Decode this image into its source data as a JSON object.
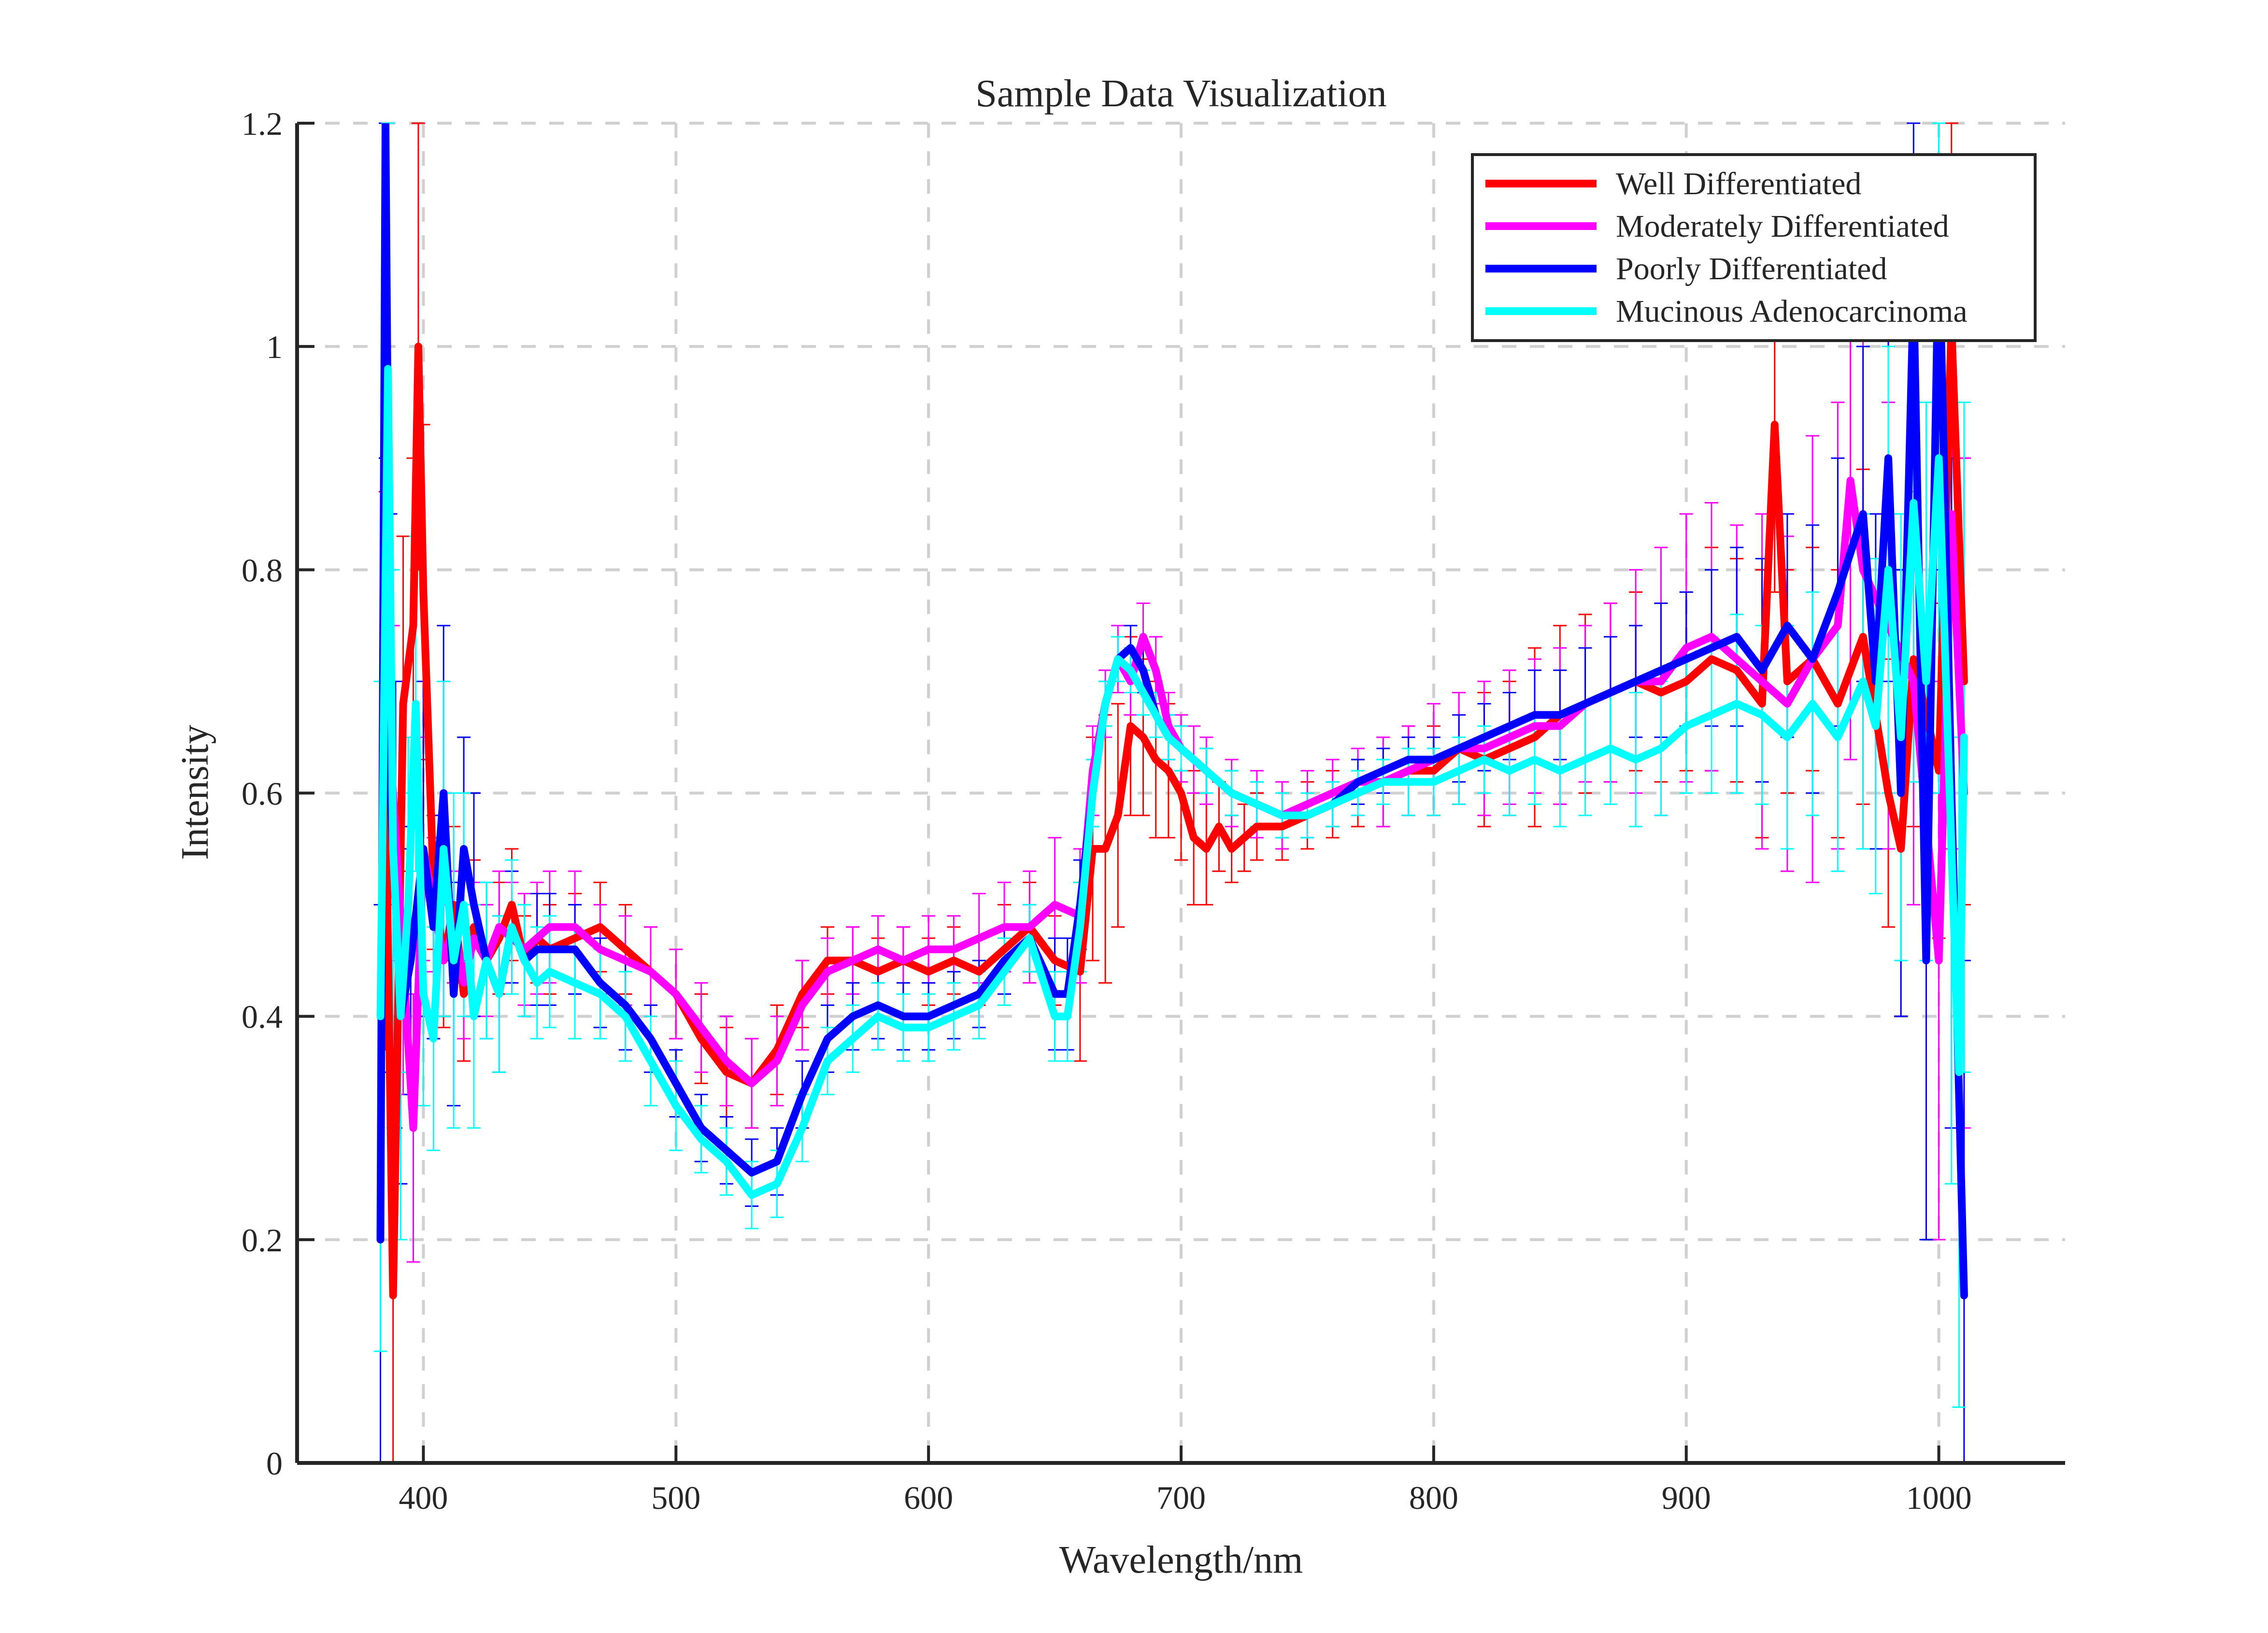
{
  "chart_data": {
    "type": "line",
    "title": "Sample Data Visualization",
    "xlabel": "Wavelength/nm",
    "ylabel": "Intensity",
    "xlim": [
      350,
      1050
    ],
    "ylim": [
      0,
      1.2
    ],
    "xticks": [
      400,
      500,
      600,
      700,
      800,
      900,
      1000
    ],
    "xtick_labels": [
      "400",
      "500",
      "600",
      "700",
      "800",
      "900",
      "1000"
    ],
    "yticks": [
      0,
      0.2,
      0.4,
      0.6,
      0.8,
      1.0,
      1.2
    ],
    "ytick_labels": [
      "0",
      "0.2",
      "0.4",
      "0.6",
      "0.8",
      "1",
      "1.2"
    ],
    "grid": true,
    "grid_style": "dashed",
    "legend_position": "top-right",
    "error_bars": true,
    "series": [
      {
        "name": "Well Differentiated",
        "color": "#ff0000",
        "x": [
          385,
          388,
          392,
          396,
          398,
          400,
          404,
          408,
          412,
          416,
          420,
          425,
          430,
          435,
          440,
          445,
          450,
          460,
          470,
          480,
          490,
          500,
          510,
          520,
          530,
          540,
          550,
          560,
          570,
          580,
          590,
          600,
          610,
          620,
          630,
          640,
          650,
          660,
          665,
          670,
          675,
          680,
          685,
          690,
          695,
          700,
          705,
          710,
          715,
          720,
          725,
          730,
          740,
          750,
          760,
          770,
          780,
          790,
          800,
          810,
          820,
          830,
          840,
          850,
          860,
          870,
          880,
          890,
          900,
          910,
          920,
          930,
          935,
          940,
          950,
          960,
          970,
          980,
          985,
          990,
          1000,
          1005,
          1010
        ],
        "y": [
          0.62,
          0.15,
          0.68,
          0.75,
          1.0,
          0.78,
          0.52,
          0.45,
          0.5,
          0.42,
          0.48,
          0.45,
          0.47,
          0.5,
          0.45,
          0.47,
          0.46,
          0.47,
          0.48,
          0.46,
          0.44,
          0.42,
          0.38,
          0.35,
          0.34,
          0.37,
          0.42,
          0.45,
          0.45,
          0.44,
          0.45,
          0.44,
          0.45,
          0.44,
          0.46,
          0.48,
          0.45,
          0.44,
          0.55,
          0.55,
          0.58,
          0.66,
          0.65,
          0.63,
          0.62,
          0.6,
          0.56,
          0.55,
          0.57,
          0.55,
          0.56,
          0.57,
          0.57,
          0.58,
          0.59,
          0.6,
          0.61,
          0.62,
          0.62,
          0.64,
          0.63,
          0.64,
          0.65,
          0.67,
          0.68,
          0.69,
          0.7,
          0.69,
          0.7,
          0.72,
          0.71,
          0.68,
          0.93,
          0.7,
          0.72,
          0.68,
          0.74,
          0.6,
          0.55,
          0.72,
          0.62,
          1.02,
          0.7
        ],
        "err": [
          0.25,
          0.25,
          0.15,
          0.15,
          0.2,
          0.15,
          0.06,
          0.06,
          0.07,
          0.06,
          0.06,
          0.05,
          0.05,
          0.05,
          0.04,
          0.04,
          0.04,
          0.04,
          0.04,
          0.04,
          0.04,
          0.04,
          0.04,
          0.04,
          0.04,
          0.04,
          0.03,
          0.03,
          0.03,
          0.03,
          0.03,
          0.03,
          0.03,
          0.03,
          0.04,
          0.04,
          0.04,
          0.08,
          0.1,
          0.12,
          0.1,
          0.08,
          0.07,
          0.07,
          0.06,
          0.06,
          0.06,
          0.05,
          0.04,
          0.03,
          0.03,
          0.03,
          0.03,
          0.03,
          0.03,
          0.03,
          0.04,
          0.04,
          0.04,
          0.05,
          0.06,
          0.06,
          0.08,
          0.08,
          0.08,
          0.08,
          0.08,
          0.08,
          0.08,
          0.1,
          0.1,
          0.12,
          0.15,
          0.1,
          0.1,
          0.12,
          0.15,
          0.12,
          0.15,
          0.15,
          0.15,
          0.2,
          0.2
        ]
      },
      {
        "name": "Moderately Differentiated",
        "color": "#ff00ff",
        "x": [
          385,
          388,
          392,
          396,
          400,
          404,
          408,
          412,
          416,
          420,
          425,
          430,
          435,
          440,
          445,
          450,
          460,
          470,
          480,
          490,
          500,
          510,
          520,
          530,
          540,
          550,
          560,
          570,
          580,
          590,
          600,
          610,
          620,
          630,
          640,
          650,
          660,
          665,
          670,
          675,
          680,
          685,
          690,
          695,
          700,
          705,
          710,
          720,
          730,
          740,
          750,
          760,
          770,
          780,
          790,
          800,
          810,
          820,
          830,
          840,
          850,
          860,
          870,
          880,
          890,
          900,
          910,
          920,
          930,
          940,
          950,
          960,
          965,
          970,
          980,
          990,
          1000,
          1005,
          1010
        ],
        "y": [
          0.7,
          0.6,
          0.45,
          0.3,
          0.55,
          0.5,
          0.45,
          0.48,
          0.43,
          0.47,
          0.45,
          0.48,
          0.47,
          0.46,
          0.47,
          0.48,
          0.48,
          0.46,
          0.45,
          0.44,
          0.42,
          0.39,
          0.36,
          0.34,
          0.36,
          0.41,
          0.44,
          0.45,
          0.46,
          0.45,
          0.46,
          0.46,
          0.47,
          0.48,
          0.48,
          0.5,
          0.49,
          0.62,
          0.68,
          0.72,
          0.7,
          0.74,
          0.71,
          0.66,
          0.64,
          0.63,
          0.62,
          0.6,
          0.59,
          0.58,
          0.59,
          0.6,
          0.61,
          0.61,
          0.62,
          0.63,
          0.64,
          0.64,
          0.65,
          0.66,
          0.66,
          0.68,
          0.69,
          0.7,
          0.7,
          0.73,
          0.74,
          0.72,
          0.7,
          0.68,
          0.72,
          0.75,
          0.88,
          0.8,
          0.75,
          0.7,
          0.45,
          0.85,
          0.6
        ],
        "err": [
          0.2,
          0.15,
          0.12,
          0.12,
          0.1,
          0.06,
          0.05,
          0.05,
          0.05,
          0.05,
          0.05,
          0.05,
          0.05,
          0.05,
          0.05,
          0.05,
          0.05,
          0.04,
          0.04,
          0.04,
          0.04,
          0.04,
          0.04,
          0.04,
          0.04,
          0.04,
          0.03,
          0.03,
          0.03,
          0.03,
          0.03,
          0.03,
          0.04,
          0.04,
          0.05,
          0.06,
          0.06,
          0.04,
          0.03,
          0.03,
          0.03,
          0.03,
          0.03,
          0.03,
          0.03,
          0.03,
          0.03,
          0.03,
          0.03,
          0.03,
          0.03,
          0.03,
          0.03,
          0.04,
          0.04,
          0.05,
          0.05,
          0.06,
          0.06,
          0.06,
          0.07,
          0.07,
          0.08,
          0.1,
          0.12,
          0.12,
          0.12,
          0.12,
          0.15,
          0.15,
          0.2,
          0.2,
          0.25,
          0.25,
          0.2,
          0.2,
          0.25,
          0.3,
          0.3
        ]
      },
      {
        "name": "Poorly Differentiated",
        "color": "#0000ff",
        "x": [
          383,
          385,
          387,
          389,
          391,
          395,
          400,
          404,
          408,
          412,
          416,
          420,
          425,
          430,
          435,
          440,
          445,
          450,
          460,
          470,
          480,
          490,
          500,
          510,
          520,
          530,
          540,
          550,
          560,
          570,
          580,
          590,
          600,
          610,
          620,
          630,
          640,
          650,
          655,
          660,
          665,
          670,
          675,
          680,
          685,
          690,
          695,
          700,
          710,
          720,
          730,
          740,
          750,
          760,
          770,
          780,
          790,
          800,
          810,
          820,
          830,
          840,
          850,
          860,
          870,
          880,
          890,
          900,
          910,
          920,
          930,
          940,
          950,
          960,
          970,
          975,
          980,
          985,
          990,
          995,
          1000,
          1005,
          1010
        ],
        "y": [
          0.2,
          1.2,
          0.6,
          0.5,
          0.4,
          0.45,
          0.55,
          0.48,
          0.6,
          0.42,
          0.55,
          0.5,
          0.45,
          0.42,
          0.48,
          0.45,
          0.46,
          0.46,
          0.46,
          0.43,
          0.41,
          0.38,
          0.34,
          0.3,
          0.28,
          0.26,
          0.27,
          0.33,
          0.38,
          0.4,
          0.41,
          0.4,
          0.4,
          0.41,
          0.42,
          0.45,
          0.47,
          0.42,
          0.42,
          0.5,
          0.6,
          0.68,
          0.72,
          0.73,
          0.71,
          0.67,
          0.65,
          0.64,
          0.62,
          0.6,
          0.59,
          0.58,
          0.58,
          0.59,
          0.61,
          0.62,
          0.63,
          0.63,
          0.64,
          0.65,
          0.66,
          0.67,
          0.67,
          0.68,
          0.69,
          0.7,
          0.71,
          0.72,
          0.73,
          0.74,
          0.71,
          0.75,
          0.72,
          0.78,
          0.85,
          0.7,
          0.9,
          0.6,
          1.05,
          0.45,
          1.1,
          0.6,
          0.15
        ],
        "err": [
          0.3,
          0.3,
          0.25,
          0.2,
          0.15,
          0.12,
          0.15,
          0.1,
          0.15,
          0.1,
          0.1,
          0.1,
          0.07,
          0.07,
          0.05,
          0.05,
          0.05,
          0.05,
          0.04,
          0.04,
          0.04,
          0.03,
          0.03,
          0.03,
          0.03,
          0.03,
          0.03,
          0.03,
          0.03,
          0.03,
          0.03,
          0.03,
          0.03,
          0.03,
          0.03,
          0.03,
          0.03,
          0.05,
          0.05,
          0.04,
          0.03,
          0.02,
          0.02,
          0.02,
          0.02,
          0.02,
          0.02,
          0.02,
          0.02,
          0.02,
          0.02,
          0.02,
          0.02,
          0.02,
          0.02,
          0.02,
          0.02,
          0.02,
          0.03,
          0.03,
          0.03,
          0.04,
          0.04,
          0.05,
          0.05,
          0.05,
          0.06,
          0.06,
          0.07,
          0.08,
          0.1,
          0.1,
          0.12,
          0.12,
          0.15,
          0.15,
          0.2,
          0.2,
          0.25,
          0.25,
          0.3,
          0.3,
          0.3
        ]
      },
      {
        "name": "Mucinous Adenocarcinoma",
        "color": "#00ffff",
        "x": [
          383,
          386,
          388,
          391,
          394,
          397,
          400,
          404,
          408,
          412,
          416,
          420,
          425,
          430,
          435,
          440,
          445,
          450,
          460,
          470,
          480,
          490,
          500,
          510,
          520,
          530,
          540,
          550,
          560,
          570,
          580,
          590,
          600,
          610,
          620,
          630,
          640,
          650,
          655,
          660,
          665,
          670,
          675,
          680,
          685,
          690,
          695,
          700,
          710,
          720,
          730,
          740,
          750,
          760,
          770,
          780,
          790,
          800,
          810,
          820,
          830,
          840,
          850,
          860,
          870,
          880,
          890,
          900,
          910,
          920,
          930,
          940,
          950,
          960,
          970,
          975,
          980,
          985,
          990,
          995,
          1000,
          1005,
          1008,
          1010
        ],
        "y": [
          0.4,
          0.98,
          0.55,
          0.4,
          0.5,
          0.68,
          0.42,
          0.38,
          0.55,
          0.45,
          0.5,
          0.4,
          0.45,
          0.42,
          0.48,
          0.45,
          0.43,
          0.44,
          0.43,
          0.42,
          0.4,
          0.36,
          0.32,
          0.29,
          0.27,
          0.24,
          0.25,
          0.3,
          0.36,
          0.38,
          0.4,
          0.39,
          0.39,
          0.4,
          0.41,
          0.44,
          0.47,
          0.4,
          0.4,
          0.48,
          0.6,
          0.68,
          0.72,
          0.71,
          0.69,
          0.67,
          0.65,
          0.64,
          0.62,
          0.6,
          0.59,
          0.58,
          0.58,
          0.59,
          0.6,
          0.61,
          0.61,
          0.61,
          0.62,
          0.63,
          0.62,
          0.63,
          0.62,
          0.63,
          0.64,
          0.63,
          0.64,
          0.66,
          0.67,
          0.68,
          0.67,
          0.65,
          0.68,
          0.65,
          0.7,
          0.66,
          0.8,
          0.65,
          0.86,
          0.7,
          0.9,
          0.55,
          0.35,
          0.65
        ],
        "err": [
          0.3,
          0.3,
          0.25,
          0.2,
          0.15,
          0.15,
          0.1,
          0.1,
          0.15,
          0.15,
          0.1,
          0.1,
          0.07,
          0.07,
          0.06,
          0.05,
          0.05,
          0.05,
          0.05,
          0.04,
          0.04,
          0.04,
          0.04,
          0.03,
          0.03,
          0.03,
          0.03,
          0.03,
          0.03,
          0.03,
          0.03,
          0.03,
          0.03,
          0.03,
          0.03,
          0.03,
          0.03,
          0.04,
          0.04,
          0.04,
          0.03,
          0.02,
          0.02,
          0.02,
          0.02,
          0.02,
          0.02,
          0.02,
          0.02,
          0.02,
          0.02,
          0.02,
          0.02,
          0.02,
          0.02,
          0.02,
          0.03,
          0.03,
          0.03,
          0.03,
          0.04,
          0.04,
          0.05,
          0.05,
          0.05,
          0.06,
          0.06,
          0.06,
          0.07,
          0.08,
          0.08,
          0.1,
          0.1,
          0.12,
          0.15,
          0.15,
          0.2,
          0.2,
          0.25,
          0.25,
          0.3,
          0.3,
          0.3,
          0.3
        ]
      }
    ]
  }
}
